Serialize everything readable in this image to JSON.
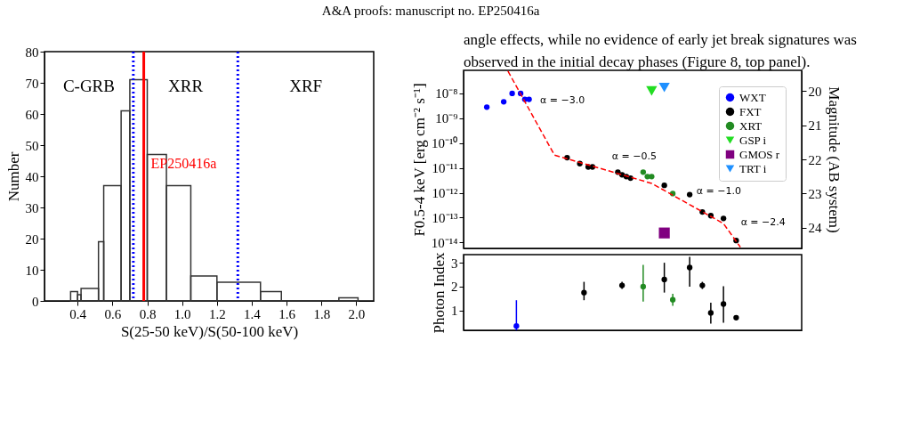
{
  "chart_data": [
    {
      "type": "histogram",
      "xlabel": "S(25-50 keV)/S(50-100 keV)",
      "ylabel": "Number",
      "color": "#333333",
      "bins": [
        0.36,
        0.4,
        0.42,
        0.52,
        0.55,
        0.65,
        0.7,
        0.8,
        0.91,
        1.05,
        1.2,
        1.45,
        1.57,
        1.9,
        2.01
      ],
      "values": [
        3,
        2,
        4,
        19,
        37,
        61,
        71,
        47,
        37,
        8,
        6,
        3,
        0,
        1
      ],
      "xlim": [
        0.21,
        2.1
      ],
      "xticks": [
        0.4,
        0.6,
        0.8,
        {
          "value": 1,
          "label": "1.0"
        },
        1.2,
        1.4,
        1.6,
        1.8,
        {
          "value": 2,
          "label": "2.0"
        }
      ],
      "ylim": [
        0,
        80
      ],
      "yticks": [
        0,
        10,
        20,
        30,
        40,
        50,
        60,
        70,
        80
      ],
      "ref_lines": [
        {
          "axis": "x",
          "value": 0.72,
          "color": "#0000ff",
          "line_style": "dotted"
        },
        {
          "axis": "x",
          "value": 0.78,
          "color": "#ff0000",
          "line_style": "solid",
          "label": "EP250416a"
        },
        {
          "axis": "x",
          "value": 1.32,
          "color": "#0000ff",
          "line_style": "dotted"
        }
      ],
      "annotations": [
        "A&A proofs: manuscript no. EP250416a",
        "C-GRB",
        "XRR",
        "XRF"
      ]
    },
    {
      "type": "scatter",
      "ylabel": "F0.5-4 keV [erg cm⁻² s⁻¹]",
      "y2label": "Magnitude (AB system)",
      "log": "y",
      "legend": "top right",
      "categories": [
        null,
        null,
        null,
        null,
        null,
        null,
        null,
        null,
        null,
        null,
        null,
        null,
        null,
        null,
        null,
        null,
        null,
        null,
        null,
        null,
        null,
        null,
        null,
        null,
        null,
        null,
        null,
        null,
        null,
        null,
        null,
        null,
        null,
        null,
        null,
        null,
        null,
        null,
        null,
        null,
        null,
        null,
        null,
        null,
        null,
        null,
        null,
        null,
        null,
        null,
        null,
        null,
        null,
        null,
        null,
        null,
        null,
        null,
        null,
        null,
        null,
        null,
        null,
        null,
        null,
        null,
        null,
        null,
        null,
        null,
        null,
        null,
        null,
        null,
        null,
        null,
        null,
        null,
        null,
        null
      ],
      "ylim": [
        5.8e-15,
        8.5e-08
      ],
      "yticks": [
        {
          "value": 1e-14,
          "label": "10⁻¹⁴"
        },
        {
          "value": 1e-13,
          "label": "10⁻¹³"
        },
        {
          "value": 1e-12,
          "label": "10⁻¹²"
        },
        {
          "value": 1e-11,
          "label": "10⁻¹¹"
        },
        {
          "value": 1e-10,
          "label": "10⁻¹⁰"
        },
        {
          "value": 1e-09,
          "label": "10⁻⁹"
        },
        {
          "value": 1e-08,
          "label": "10⁻⁸"
        }
      ],
      "y2lim": [
        24.6,
        19.4
      ],
      "y2ticks": [
        20,
        21,
        22,
        23,
        24
      ],
      "series": [
        {
          "name": "WXT",
          "type": "scatter",
          "marker": "circle",
          "color": "#0000ff",
          "values": [
            null,
            null,
            null,
            null,
            null,
            2.8e-09,
            null,
            null,
            null,
            4.6e-09,
            null,
            1e-08,
            null,
            1e-08,
            5.8e-09,
            5.8e-09,
            null,
            null,
            null,
            null,
            null,
            null,
            null,
            null,
            null,
            null,
            null,
            null,
            null,
            null,
            null,
            null,
            null,
            null,
            null,
            null,
            null,
            null,
            null,
            null,
            null,
            null,
            null,
            null,
            null,
            null,
            null,
            null,
            null,
            null,
            null,
            null,
            null,
            null,
            null,
            null,
            null,
            null,
            null,
            null,
            null,
            null,
            null,
            null,
            null,
            null,
            null,
            null,
            null,
            null,
            null,
            null,
            null,
            null,
            null,
            null,
            null,
            null,
            null,
            null
          ]
        },
        {
          "name": "FXT",
          "type": "scatter",
          "marker": "circle",
          "color": "#000000",
          "values": [
            null,
            null,
            null,
            null,
            null,
            null,
            null,
            null,
            null,
            null,
            null,
            null,
            null,
            null,
            null,
            null,
            null,
            null,
            null,
            null,
            null,
            null,
            null,
            null,
            2.6e-11,
            null,
            null,
            1.5e-11,
            null,
            1.1e-11,
            1.1e-11,
            null,
            null,
            null,
            null,
            null,
            6.8e-12,
            5.3e-12,
            4.5e-12,
            3.9e-12,
            null,
            null,
            null,
            null,
            null,
            null,
            null,
            2e-12,
            null,
            null,
            null,
            null,
            null,
            8.5e-13,
            null,
            null,
            1.7e-13,
            null,
            1.2e-13,
            null,
            null,
            9.3e-14,
            null,
            null,
            1.2e-14,
            null,
            null,
            null,
            null,
            null,
            null,
            null,
            null,
            null,
            null,
            null,
            null,
            null,
            null,
            null
          ]
        },
        {
          "name": "XRT",
          "type": "scatter",
          "marker": "circle",
          "color": "#228b22",
          "values": [
            null,
            null,
            null,
            null,
            null,
            null,
            null,
            null,
            null,
            null,
            null,
            null,
            null,
            null,
            null,
            null,
            null,
            null,
            null,
            null,
            null,
            null,
            null,
            null,
            null,
            null,
            null,
            null,
            null,
            null,
            null,
            null,
            null,
            null,
            null,
            null,
            null,
            null,
            null,
            null,
            null,
            null,
            6.8e-12,
            4.5e-12,
            4.5e-12,
            null,
            null,
            null,
            null,
            9.3e-13,
            null,
            null,
            null,
            null,
            null,
            null,
            null,
            null,
            null,
            null,
            null,
            null,
            null,
            null,
            null,
            null,
            null,
            null,
            null,
            null,
            null,
            null,
            null,
            null,
            null,
            null,
            null,
            null,
            null,
            null
          ]
        },
        {
          "name": "GSP i",
          "type": "scatter",
          "marker": "triangle",
          "axis": "y2",
          "color": "#22dd22",
          "values": [
            null,
            null,
            null,
            null,
            null,
            null,
            null,
            null,
            null,
            null,
            null,
            null,
            null,
            null,
            null,
            null,
            null,
            null,
            null,
            null,
            null,
            null,
            null,
            null,
            null,
            null,
            null,
            null,
            null,
            null,
            null,
            null,
            null,
            null,
            null,
            null,
            null,
            null,
            null,
            null,
            null,
            null,
            null,
            null,
            20.0,
            null,
            null,
            null,
            null,
            null,
            null,
            null,
            null,
            null,
            null,
            null,
            null,
            null,
            null,
            null,
            null,
            null,
            null,
            null,
            null,
            null,
            null,
            null,
            null,
            null,
            null,
            null,
            null,
            null,
            null,
            null,
            null,
            null,
            null,
            null
          ]
        },
        {
          "name": "GMOS r",
          "type": "scatter",
          "marker": "square",
          "axis": "y2",
          "color": "#800080",
          "values": [
            null,
            null,
            null,
            null,
            null,
            null,
            null,
            null,
            null,
            null,
            null,
            null,
            null,
            null,
            null,
            null,
            null,
            null,
            null,
            null,
            null,
            null,
            null,
            null,
            null,
            null,
            null,
            null,
            null,
            null,
            null,
            null,
            null,
            null,
            null,
            null,
            null,
            null,
            null,
            null,
            null,
            null,
            null,
            null,
            null,
            null,
            null,
            24.15,
            null,
            null,
            null,
            null,
            null,
            null,
            null,
            null,
            null,
            null,
            null,
            null,
            null,
            null,
            null,
            null,
            null,
            null,
            null,
            null,
            null,
            null,
            null,
            null,
            null,
            null,
            null,
            null,
            null,
            null,
            null,
            null
          ]
        },
        {
          "name": "TRT i",
          "type": "scatter",
          "marker": "triangle",
          "axis": "y2",
          "color": "#1e90ff",
          "values": [
            null,
            null,
            null,
            null,
            null,
            null,
            null,
            null,
            null,
            null,
            null,
            null,
            null,
            null,
            null,
            null,
            null,
            null,
            null,
            null,
            null,
            null,
            null,
            null,
            null,
            null,
            null,
            null,
            null,
            null,
            null,
            null,
            null,
            null,
            null,
            null,
            null,
            null,
            null,
            null,
            null,
            null,
            null,
            null,
            null,
            null,
            null,
            19.9,
            null,
            null,
            null,
            null,
            null,
            null,
            null,
            null,
            null,
            null,
            null,
            null,
            null,
            null,
            null,
            null,
            null,
            null,
            null,
            null,
            null,
            null,
            null,
            null,
            null,
            null,
            null,
            null,
            null,
            null,
            null,
            null
          ]
        },
        {
          "type": "line",
          "line_style": "dashed",
          "color": "#ff0000",
          "values": [
            null,
            null,
            null,
            null,
            null,
            null,
            null,
            null,
            null,
            null,
            7.9e-08,
            null,
            null,
            null,
            null,
            null,
            null,
            null,
            null,
            null,
            null,
            3.3e-11,
            null,
            null,
            null,
            null,
            null,
            null,
            null,
            null,
            null,
            null,
            null,
            null,
            null,
            null,
            null,
            null,
            null,
            null,
            null,
            null,
            null,
            null,
            2.4e-12,
            null,
            null,
            null,
            null,
            null,
            null,
            null,
            null,
            null,
            null,
            null,
            null,
            null,
            null,
            null,
            null,
            5.8e-14,
            null,
            null,
            null,
            6.5e-15,
            null,
            null,
            null,
            null,
            null,
            null,
            null,
            null,
            null,
            null,
            null,
            null,
            null,
            null
          ]
        }
      ],
      "annotations": [
        "angle effects, while no evidence of early jet break signatures was observed in the initial decay phases (Figure 8, top panel).",
        "α = −3.0",
        "α = −0.5",
        "α = −1.0",
        "α = −2.4"
      ]
    },
    {
      "type": "scatter",
      "ylabel": "Photon Index",
      "categories": [
        null,
        null,
        null,
        null,
        null,
        null,
        null,
        null,
        null,
        null,
        null,
        null,
        null,
        null,
        null,
        null,
        null,
        null,
        null,
        null,
        null,
        null,
        null,
        null,
        null,
        null,
        null,
        null,
        null,
        null,
        null,
        null,
        null,
        null,
        null,
        null,
        null,
        null,
        null,
        null,
        null,
        null,
        null,
        null,
        null,
        null,
        null,
        null,
        null,
        null,
        null,
        null,
        null,
        null,
        null,
        null,
        null,
        null,
        null,
        null,
        null,
        null,
        null,
        null,
        null,
        null,
        null,
        null,
        null,
        null,
        null,
        null,
        null,
        null,
        null,
        null,
        null,
        null,
        null,
        null
      ],
      "ylim": [
        0.17,
        3.34
      ],
      "yticks": [
        1,
        2,
        3
      ],
      "series": [
        {
          "type": "scatter",
          "color": "#0000ff",
          "values": [
            null,
            null,
            null,
            null,
            null,
            null,
            null,
            null,
            null,
            null,
            null,
            null,
            0.35,
            null,
            null,
            null,
            null,
            null,
            null,
            null,
            null,
            null,
            null,
            null,
            null,
            null,
            null,
            null,
            null,
            null,
            null,
            null,
            null,
            null,
            null,
            null,
            null,
            null,
            null,
            null,
            null,
            null,
            null,
            null,
            null,
            null,
            null,
            null,
            null,
            null,
            null,
            null,
            null,
            null,
            null,
            null,
            null,
            null,
            null,
            null,
            null,
            null,
            null,
            null,
            null,
            null,
            null,
            null,
            null,
            null,
            null,
            null,
            null,
            null,
            null,
            null,
            null,
            null,
            null,
            null
          ],
          "errors": [
            null,
            null,
            null,
            null,
            null,
            null,
            null,
            null,
            null,
            null,
            null,
            null,
            [
              0.17,
              1.43
            ],
            null,
            null,
            null,
            null,
            null,
            null,
            null,
            null,
            null,
            null,
            null,
            null,
            null,
            null,
            null,
            null,
            null,
            null,
            null,
            null,
            null,
            null,
            null,
            null,
            null,
            null,
            null,
            null,
            null,
            null,
            null,
            null,
            null,
            null,
            null,
            null,
            null,
            null,
            null,
            null,
            null,
            null,
            null,
            null,
            null,
            null,
            null,
            null,
            null,
            null,
            null,
            null,
            null,
            null,
            null,
            null,
            null,
            null,
            null,
            null,
            null,
            null,
            null,
            null,
            null,
            null,
            null
          ]
        },
        {
          "type": "scatter",
          "color": "#000000",
          "values": [
            null,
            null,
            null,
            null,
            null,
            null,
            null,
            null,
            null,
            null,
            null,
            null,
            null,
            null,
            null,
            null,
            null,
            null,
            null,
            null,
            null,
            null,
            null,
            null,
            null,
            null,
            null,
            null,
            1.75,
            null,
            null,
            null,
            null,
            null,
            null,
            null,
            null,
            2.05,
            null,
            null,
            null,
            null,
            null,
            null,
            null,
            null,
            null,
            2.3,
            null,
            null,
            null,
            null,
            null,
            2.8,
            null,
            null,
            2.05,
            null,
            0.9,
            null,
            null,
            1.27,
            null,
            null,
            0.7,
            null,
            null,
            null,
            null,
            null,
            null,
            null,
            null,
            null,
            null,
            null,
            null,
            null,
            null,
            null
          ],
          "errors": [
            null,
            null,
            null,
            null,
            null,
            null,
            null,
            null,
            null,
            null,
            null,
            null,
            null,
            null,
            null,
            null,
            null,
            null,
            null,
            null,
            null,
            null,
            null,
            null,
            null,
            null,
            null,
            null,
            [
              1.43,
              2.2
            ],
            null,
            null,
            null,
            null,
            null,
            null,
            null,
            null,
            [
              1.9,
              2.2
            ],
            null,
            null,
            null,
            null,
            null,
            null,
            null,
            null,
            null,
            [
              1.75,
              3.0
            ],
            null,
            null,
            null,
            null,
            null,
            [
              2.0,
              3.25
            ],
            null,
            null,
            [
              1.9,
              2.2
            ],
            null,
            [
              0.45,
              1.33
            ],
            null,
            null,
            [
              0.49,
              2.02
            ],
            null,
            null,
            [
              0.63,
              0.78
            ],
            null,
            null,
            null,
            null,
            null,
            null,
            null,
            null,
            null,
            null,
            null,
            null,
            null,
            null,
            null
          ]
        },
        {
          "type": "scatter",
          "color": "#228b22",
          "values": [
            null,
            null,
            null,
            null,
            null,
            null,
            null,
            null,
            null,
            null,
            null,
            null,
            null,
            null,
            null,
            null,
            null,
            null,
            null,
            null,
            null,
            null,
            null,
            null,
            null,
            null,
            null,
            null,
            null,
            null,
            null,
            null,
            null,
            null,
            null,
            null,
            null,
            null,
            null,
            null,
            null,
            null,
            2.0,
            null,
            null,
            null,
            null,
            null,
            null,
            1.45,
            null,
            null,
            null,
            null,
            null,
            null,
            null,
            null,
            null,
            null,
            null,
            null,
            null,
            null,
            null,
            null,
            null,
            null,
            null,
            null,
            null,
            null,
            null,
            null,
            null,
            null,
            null,
            null,
            null,
            null
          ],
          "errors": [
            null,
            null,
            null,
            null,
            null,
            null,
            null,
            null,
            null,
            null,
            null,
            null,
            null,
            null,
            null,
            null,
            null,
            null,
            null,
            null,
            null,
            null,
            null,
            null,
            null,
            null,
            null,
            null,
            null,
            null,
            null,
            null,
            null,
            null,
            null,
            null,
            null,
            null,
            null,
            null,
            null,
            null,
            [
              1.37,
              2.91
            ],
            null,
            null,
            null,
            null,
            null,
            null,
            [
              1.2,
              1.7
            ],
            null,
            null,
            null,
            null,
            null,
            null,
            null,
            null,
            null,
            null,
            null,
            null,
            null,
            null,
            null,
            null,
            null,
            null,
            null,
            null,
            null,
            null,
            null,
            null,
            null,
            null,
            null,
            null,
            null,
            null
          ]
        }
      ]
    }
  ]
}
